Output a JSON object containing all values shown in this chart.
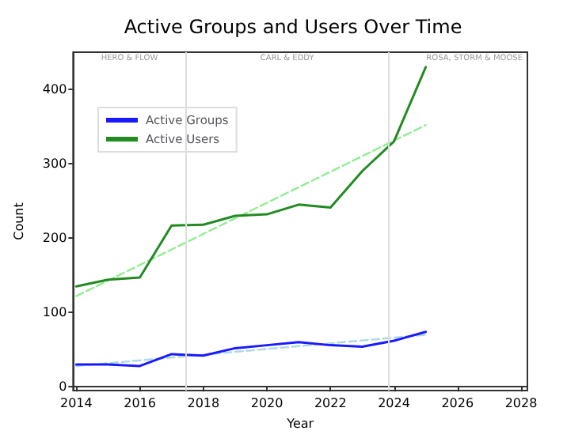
{
  "chart_data": {
    "type": "line",
    "title": "Active Groups and Users Over Time",
    "xlabel": "Year",
    "ylabel": "Count",
    "x": [
      2014,
      2015,
      2016,
      2017,
      2018,
      2019,
      2020,
      2021,
      2022,
      2023,
      2024,
      2025
    ],
    "series": [
      {
        "name": "Active Groups",
        "color": "#1a1aff",
        "values": [
          30,
          30,
          28,
          44,
          42,
          52,
          56,
          60,
          56,
          54,
          62,
          74
        ]
      },
      {
        "name": "Active Users",
        "color": "#228b22",
        "values": [
          135,
          144,
          147,
          217,
          218,
          230,
          232,
          245,
          241,
          290,
          330,
          430
        ]
      },
      {
        "type": "line",
        "color": "#add8e6",
        "values": [
          28,
          null,
          null,
          null,
          null,
          null,
          null,
          null,
          null,
          null,
          null,
          70
        ],
        "line_style": "dashed"
      },
      {
        "type": "line",
        "color": "#90ee90",
        "values": [
          122,
          null,
          null,
          null,
          null,
          null,
          null,
          null,
          null,
          null,
          null,
          352
        ],
        "line_style": "dashed"
      }
    ],
    "xlim": [
      2013.9,
      2028.2
    ],
    "xticks": [
      2014,
      2016,
      2018,
      2020,
      2022,
      2024,
      2026,
      2028
    ],
    "ylim": [
      -5,
      450
    ],
    "yticks": [
      0,
      100,
      200,
      300,
      400
    ],
    "ref_lines": [
      {
        "axis": "x",
        "value": 2017.45,
        "color": "#dddddd"
      },
      {
        "axis": "x",
        "value": 2023.83,
        "color": "#dddddd"
      }
    ],
    "annotations": [
      "HERO & FLOW",
      "CARL & EDDY",
      "ROSA, STORM & MOOSE"
    ],
    "grid": false,
    "legend": "top left",
    "marker": "none",
    "line_style": "solid"
  }
}
